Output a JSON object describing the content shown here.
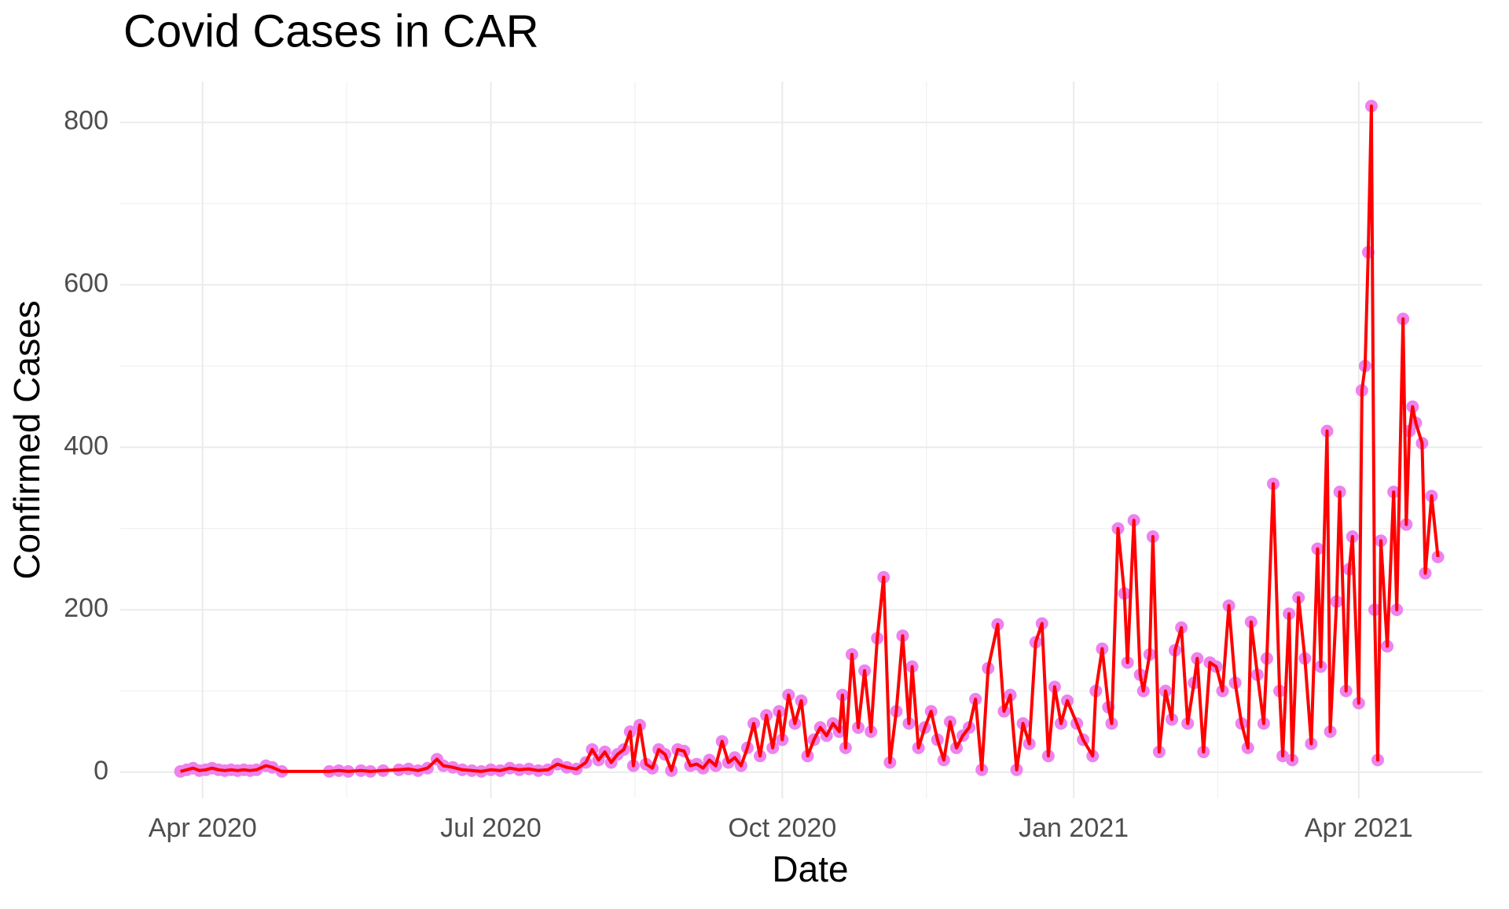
{
  "chart_data": {
    "type": "line",
    "title": "Covid Cases in CAR",
    "x_label": "Date",
    "y_label": "Confirmed Cases",
    "x": [
      "2020-03-25",
      "2020-03-27",
      "2020-03-29",
      "2020-03-31",
      "2020-04-02",
      "2020-04-04",
      "2020-04-06",
      "2020-04-08",
      "2020-04-10",
      "2020-04-12",
      "2020-04-14",
      "2020-04-16",
      "2020-04-18",
      "2020-04-21",
      "2020-04-23",
      "2020-04-26",
      "2020-05-11",
      "2020-05-14",
      "2020-05-17",
      "2020-05-21",
      "2020-05-24",
      "2020-05-28",
      "2020-06-02",
      "2020-06-05",
      "2020-06-08",
      "2020-06-11",
      "2020-06-14",
      "2020-06-16",
      "2020-06-19",
      "2020-06-22",
      "2020-06-25",
      "2020-06-28",
      "2020-07-01",
      "2020-07-04",
      "2020-07-07",
      "2020-07-10",
      "2020-07-13",
      "2020-07-16",
      "2020-07-19",
      "2020-07-22",
      "2020-07-25",
      "2020-07-28",
      "2020-07-31",
      "2020-08-02",
      "2020-08-04",
      "2020-08-06",
      "2020-08-08",
      "2020-08-10",
      "2020-08-12",
      "2020-08-14",
      "2020-08-15",
      "2020-08-17",
      "2020-08-19",
      "2020-08-21",
      "2020-08-23",
      "2020-08-25",
      "2020-08-27",
      "2020-08-29",
      "2020-08-31",
      "2020-09-02",
      "2020-09-04",
      "2020-09-06",
      "2020-09-08",
      "2020-09-10",
      "2020-09-12",
      "2020-09-14",
      "2020-09-16",
      "2020-09-18",
      "2020-09-20",
      "2020-09-22",
      "2020-09-24",
      "2020-09-26",
      "2020-09-28",
      "2020-09-30",
      "2020-10-01",
      "2020-10-03",
      "2020-10-05",
      "2020-10-07",
      "2020-10-09",
      "2020-10-11",
      "2020-10-13",
      "2020-10-15",
      "2020-10-17",
      "2020-10-19",
      "2020-10-20",
      "2020-10-21",
      "2020-10-23",
      "2020-10-25",
      "2020-10-27",
      "2020-10-29",
      "2020-10-31",
      "2020-11-02",
      "2020-11-04",
      "2020-11-06",
      "2020-11-08",
      "2020-11-10",
      "2020-11-11",
      "2020-11-13",
      "2020-11-15",
      "2020-11-17",
      "2020-11-19",
      "2020-11-21",
      "2020-11-23",
      "2020-11-25",
      "2020-11-27",
      "2020-11-29",
      "2020-12-01",
      "2020-12-03",
      "2020-12-05",
      "2020-12-08",
      "2020-12-10",
      "2020-12-12",
      "2020-12-14",
      "2020-12-16",
      "2020-12-18",
      "2020-12-20",
      "2020-12-22",
      "2020-12-24",
      "2020-12-26",
      "2020-12-28",
      "2020-12-30",
      "2021-01-02",
      "2021-01-04",
      "2021-01-07",
      "2021-01-08",
      "2021-01-10",
      "2021-01-12",
      "2021-01-13",
      "2021-01-15",
      "2021-01-17",
      "2021-01-18",
      "2021-01-20",
      "2021-01-22",
      "2021-01-23",
      "2021-01-25",
      "2021-01-26",
      "2021-01-28",
      "2021-01-30",
      "2021-02-01",
      "2021-02-02",
      "2021-02-04",
      "2021-02-06",
      "2021-02-08",
      "2021-02-09",
      "2021-02-11",
      "2021-02-13",
      "2021-02-15",
      "2021-02-17",
      "2021-02-19",
      "2021-02-21",
      "2021-02-23",
      "2021-02-25",
      "2021-02-26",
      "2021-02-28",
      "2021-03-02",
      "2021-03-03",
      "2021-03-05",
      "2021-03-07",
      "2021-03-08",
      "2021-03-10",
      "2021-03-11",
      "2021-03-13",
      "2021-03-15",
      "2021-03-17",
      "2021-03-19",
      "2021-03-20",
      "2021-03-22",
      "2021-03-23",
      "2021-03-25",
      "2021-03-26",
      "2021-03-28",
      "2021-03-29",
      "2021-03-30",
      "2021-04-01",
      "2021-04-02",
      "2021-04-03",
      "2021-04-04",
      "2021-04-05",
      "2021-04-06",
      "2021-04-07",
      "2021-04-08",
      "2021-04-10",
      "2021-04-12",
      "2021-04-13",
      "2021-04-15",
      "2021-04-16",
      "2021-04-17",
      "2021-04-18",
      "2021-04-19",
      "2021-04-21",
      "2021-04-22",
      "2021-04-24",
      "2021-04-26"
    ],
    "series": [
      {
        "name": "Confirmed Cases",
        "color": "#ff0000",
        "point_color": "#ee82ee",
        "values": [
          1,
          3,
          5,
          2,
          3,
          5,
          3,
          2,
          3,
          2,
          3,
          2,
          3,
          8,
          6,
          1,
          1,
          2,
          1,
          2,
          1,
          2,
          3,
          4,
          2,
          5,
          16,
          8,
          6,
          3,
          2,
          1,
          3,
          2,
          5,
          3,
          4,
          2,
          3,
          10,
          6,
          4,
          12,
          28,
          15,
          25,
          12,
          22,
          28,
          50,
          8,
          58,
          10,
          5,
          28,
          22,
          2,
          28,
          26,
          8,
          10,
          5,
          15,
          8,
          38,
          12,
          18,
          8,
          30,
          60,
          20,
          70,
          30,
          75,
          40,
          95,
          60,
          88,
          20,
          40,
          55,
          45,
          60,
          50,
          95,
          30,
          145,
          55,
          125,
          50,
          165,
          240,
          12,
          75,
          168,
          60,
          130,
          30,
          55,
          75,
          40,
          15,
          62,
          30,
          45,
          55,
          90,
          3,
          128,
          182,
          75,
          95,
          3,
          60,
          35,
          160,
          183,
          20,
          105,
          60,
          88,
          60,
          40,
          20,
          100,
          152,
          80,
          60,
          300,
          220,
          135,
          310,
          120,
          100,
          145,
          290,
          25,
          100,
          65,
          150,
          178,
          60,
          110,
          140,
          25,
          135,
          130,
          100,
          205,
          110,
          60,
          30,
          185,
          120,
          60,
          140,
          355,
          100,
          20,
          195,
          15,
          215,
          140,
          35,
          275,
          130,
          420,
          50,
          210,
          345,
          100,
          250,
          290,
          85,
          470,
          500,
          640,
          820,
          200,
          15,
          285,
          155,
          345,
          200,
          558,
          305,
          420,
          450,
          430,
          405,
          245,
          340,
          265
        ]
      }
    ],
    "xlim": [
      "2020-03-06",
      "2021-05-10"
    ],
    "xticks": [
      {
        "value": "2020-04-01",
        "label": "Apr 2020"
      },
      {
        "value": "2020-07-01",
        "label": "Jul 2020"
      },
      {
        "value": "2020-10-01",
        "label": "Oct 2020"
      },
      {
        "value": "2021-01-01",
        "label": "Jan 2021"
      },
      {
        "value": "2021-04-01",
        "label": "Apr 2021"
      }
    ],
    "ylim": [
      -32,
      850
    ],
    "yticks": [
      0,
      200,
      400,
      600,
      800
    ],
    "grid": true
  }
}
